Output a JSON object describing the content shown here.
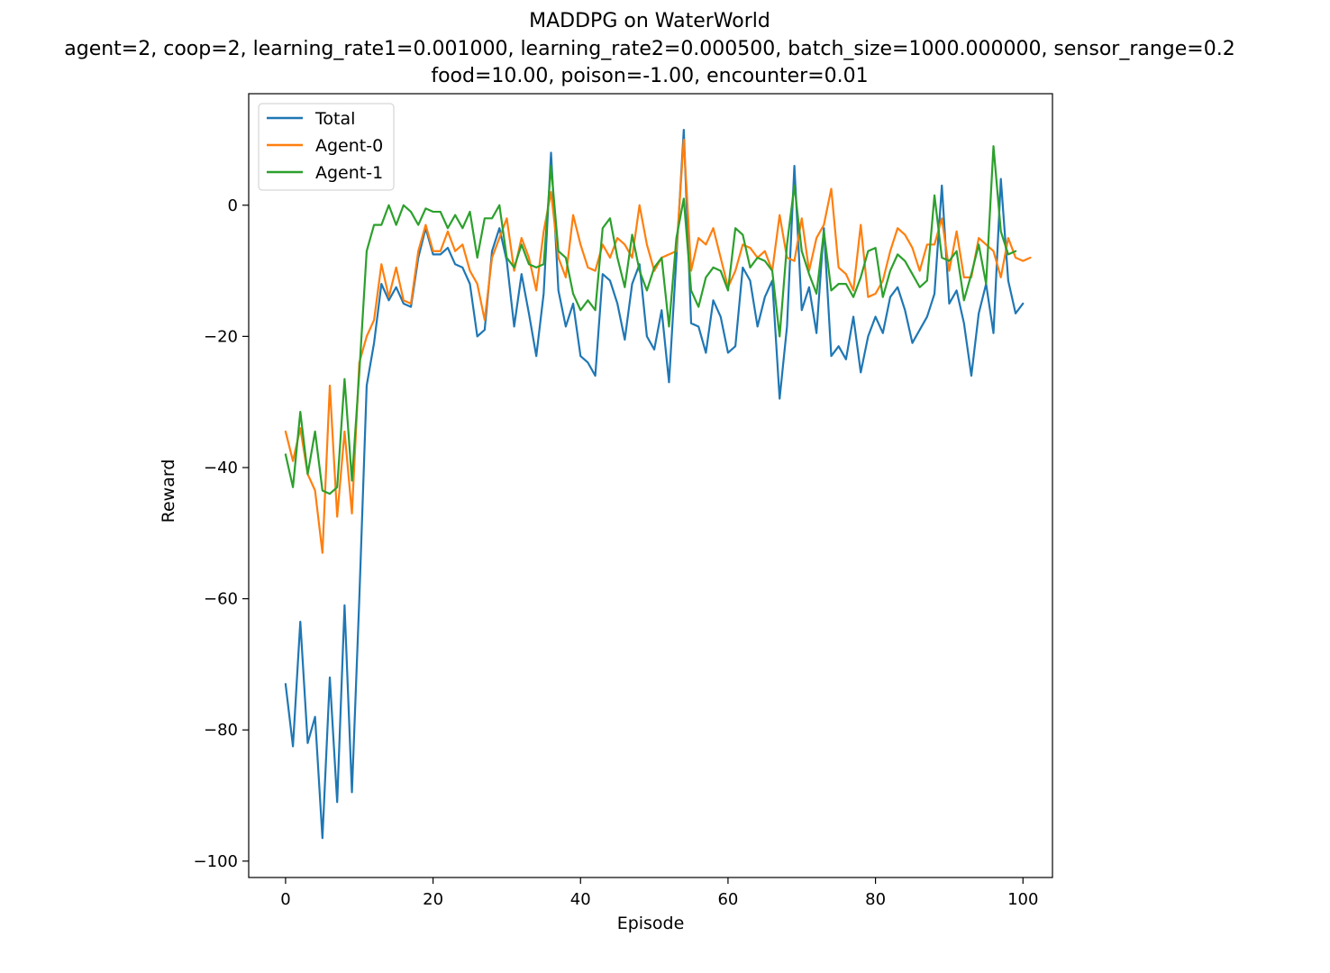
{
  "chart_data": {
    "type": "line",
    "title_lines": [
      "MADDPG on WaterWorld",
      "agent=2, coop=2, learning_rate1=0.001000, learning_rate2=0.000500, batch_size=1000.000000, sensor_range=0.2",
      "food=10.00, poison=-1.00, encounter=0.01"
    ],
    "xlabel": "Episode",
    "ylabel": "Reward",
    "xlim": [
      -5,
      104
    ],
    "ylim": [
      -102.5,
      17
    ],
    "xticks": [
      0,
      20,
      40,
      60,
      80,
      100
    ],
    "yticks": [
      0,
      -20,
      -40,
      -60,
      -80,
      -100
    ],
    "legend_position": "upper-left",
    "series": [
      {
        "name": "Total",
        "color": "#1f77b4",
        "values": [
          -73,
          -82.5,
          -63.5,
          -82,
          -78,
          -96.5,
          -72,
          -91,
          -61,
          -89.5,
          -60,
          -27.5,
          -21,
          -12,
          -14.5,
          -12.5,
          -15,
          -15.5,
          -8,
          -3.5,
          -7.5,
          -7.5,
          -6.5,
          -9,
          -9.5,
          -12,
          -20,
          -19,
          -7,
          -3.5,
          -8.5,
          -18.5,
          -10.5,
          -16.5,
          -23,
          -13.5,
          8,
          -13,
          -18.5,
          -15,
          -23,
          -24,
          -26,
          -10.5,
          -11.5,
          -15,
          -20.5,
          -12,
          -9,
          -20,
          -22,
          -16,
          -27,
          -8,
          11.5,
          -18,
          -18.5,
          -22.5,
          -14.5,
          -17,
          -22.5,
          -21.5,
          -9.5,
          -11.5,
          -18.5,
          -14,
          -11.5,
          -29.5,
          -18.5,
          6,
          -16,
          -12.5,
          -19.5,
          -3.5,
          -23,
          -21.5,
          -23.5,
          -17,
          -25.5,
          -20,
          -17,
          -19.5,
          -14,
          -12.5,
          -16,
          -21,
          -19,
          -17,
          -13.5,
          3,
          -15,
          -13,
          -18,
          -26,
          -16.5,
          -12,
          -19.5,
          4,
          -11.5,
          -16.5,
          -15
        ]
      },
      {
        "name": "Agent-0",
        "color": "#ff7f0e",
        "values": [
          -34.5,
          -39,
          -34,
          -41,
          -43.5,
          -53,
          -27.5,
          -47.5,
          -34.5,
          -47,
          -24,
          -20,
          -17.5,
          -9,
          -14,
          -9.5,
          -14.5,
          -15,
          -7,
          -3,
          -7,
          -7,
          -4,
          -7,
          -6,
          -10,
          -12,
          -17.5,
          -8,
          -5,
          -2,
          -10,
          -5,
          -8,
          -13,
          -4,
          2,
          -8,
          -11,
          -1.5,
          -6,
          -9.5,
          -10,
          -6,
          -8,
          -5,
          -6,
          -8,
          0,
          -6,
          -10,
          -8,
          -7.5,
          -7,
          10,
          -10,
          -5,
          -6,
          -3.5,
          -8,
          -12.5,
          -10,
          -6,
          -6.5,
          -8,
          -7,
          -10,
          -1.5,
          -8,
          -8.5,
          -2,
          -10,
          -5,
          -3,
          2.5,
          -9.5,
          -10.5,
          -13,
          -3,
          -14,
          -13.5,
          -11.5,
          -7,
          -3.5,
          -4.5,
          -6.5,
          -10,
          -6,
          -6,
          -2,
          -10,
          -4,
          -11,
          -11,
          -5,
          -6,
          -7,
          -11,
          -5,
          -8,
          -8.5,
          -8
        ]
      },
      {
        "name": "Agent-1",
        "color": "#2ca02c",
        "values": [
          -38,
          -43,
          -31.5,
          -41,
          -34.5,
          -43.5,
          -44,
          -43,
          -26.5,
          -42,
          -25.5,
          -7,
          -3,
          -3,
          0,
          -3,
          0,
          -1,
          -3,
          -0.5,
          -1,
          -1,
          -3.5,
          -1.5,
          -3.5,
          -1,
          -8,
          -2,
          -2,
          0,
          -8,
          -9.5,
          -6,
          -9,
          -9.5,
          -9,
          6,
          -7,
          -8,
          -13.5,
          -16,
          -14.5,
          -16,
          -3.5,
          -2,
          -8,
          -12.5,
          -4.5,
          -10,
          -13,
          -9.5,
          -8,
          -18.5,
          -5,
          1,
          -13,
          -15.5,
          -11,
          -9.5,
          -10,
          -13,
          -3.5,
          -4.5,
          -9.5,
          -8,
          -8.5,
          -10,
          -20,
          -6,
          3,
          -7,
          -10.5,
          -13.5,
          -4,
          -13,
          -12,
          -12,
          -14,
          -11,
          -7,
          -6.5,
          -14,
          -10,
          -7.5,
          -8.5,
          -10.5,
          -12.5,
          -11.5,
          1.5,
          -8,
          -8.5,
          -7,
          -14.5,
          -10.5,
          -6,
          -12,
          9,
          -4,
          -7.5,
          -7
        ]
      }
    ]
  }
}
